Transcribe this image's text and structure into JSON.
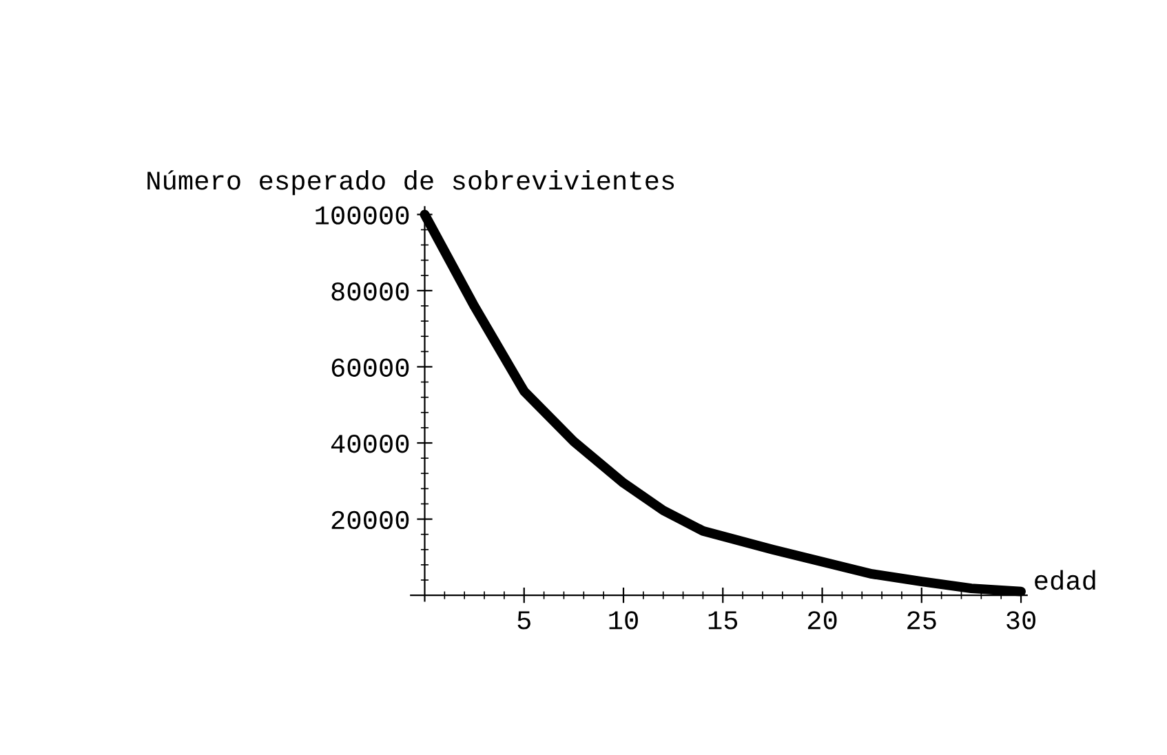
{
  "chart_data": {
    "type": "line",
    "ylabel": "Número esperado de sobrevivientes",
    "xlabel": "edad",
    "x": [
      0,
      2.5,
      5,
      7.5,
      10,
      12,
      14,
      17.5,
      20,
      22.5,
      25,
      27.5,
      30
    ],
    "series": [
      {
        "color": "#000000",
        "values": [
          100000,
          75900,
          53600,
          40400,
          29500,
          22300,
          16900,
          12000,
          8800,
          5600,
          3600,
          1800,
          1000
        ]
      }
    ],
    "xlim": [
      -0.7,
      30.3
    ],
    "ylim": [
      -1500,
      102000
    ],
    "xticks": [
      5,
      10,
      15,
      20,
      25,
      30
    ],
    "yticks": [
      20000,
      40000,
      60000,
      80000,
      100000
    ],
    "grid": false,
    "legend": false,
    "marker": "none",
    "line_style": "solid"
  }
}
